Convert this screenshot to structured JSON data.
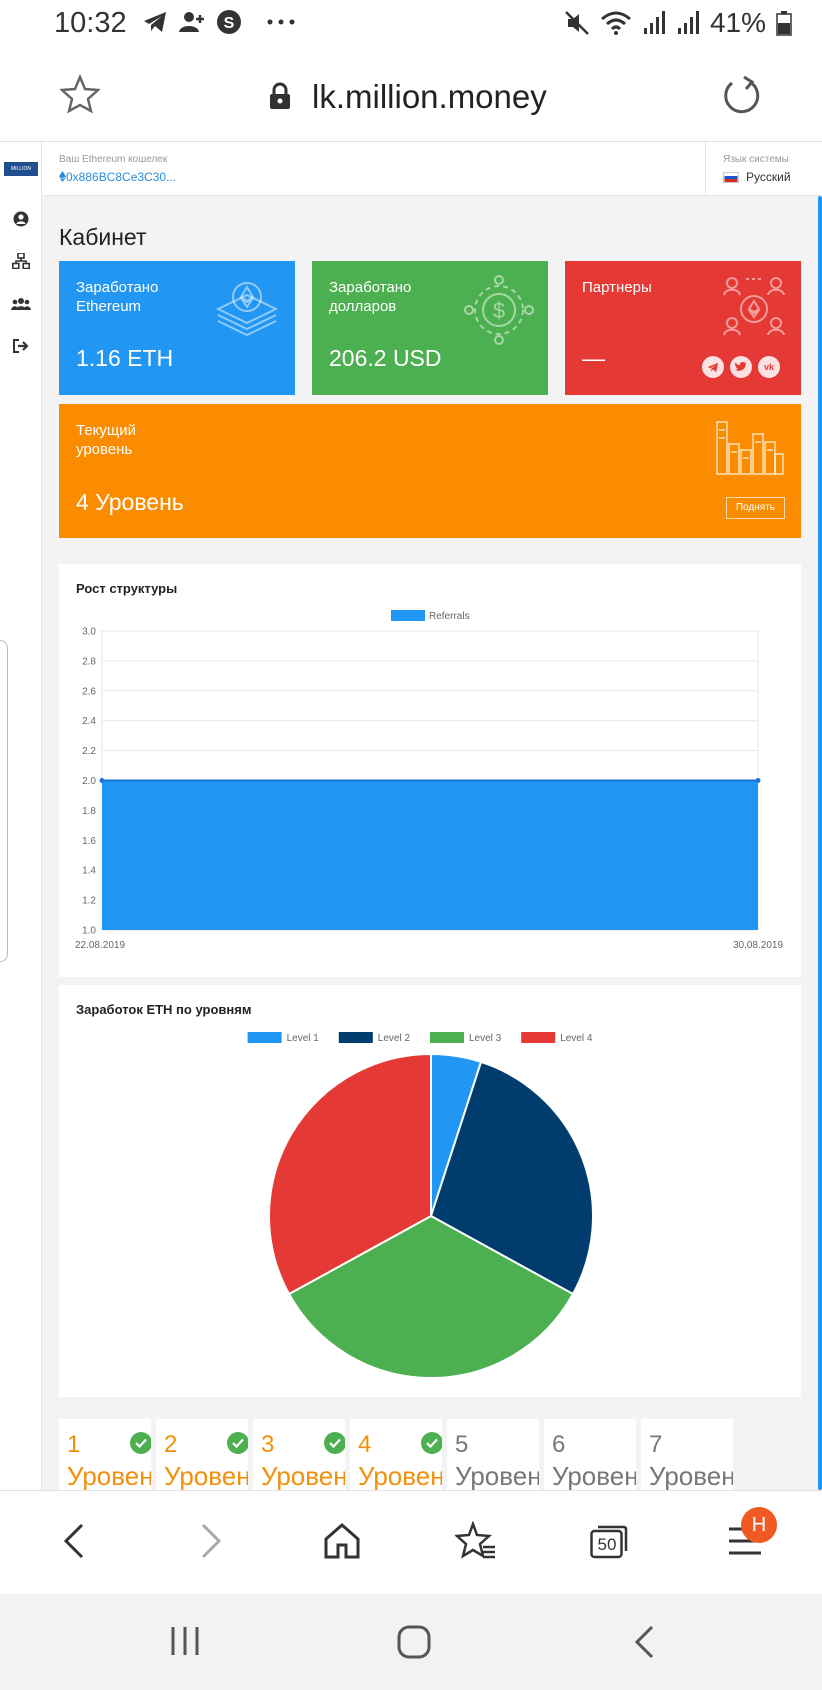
{
  "status_bar": {
    "time": "10:32",
    "battery": "41%",
    "icons": [
      "telegram-icon",
      "add-contact-icon",
      "skype-icon",
      "more-icon",
      "mute-icon",
      "wifi-icon",
      "signal-icon",
      "battery-icon"
    ]
  },
  "browser": {
    "url": "lk.million.money"
  },
  "header": {
    "wallet_label": "Ваш Ethereum кошелек",
    "wallet_address": "0x886BC8Ce3C30...",
    "language_label": "Язык системы",
    "language_value": "Русский"
  },
  "page": {
    "title": "Кабинет"
  },
  "cards": {
    "eth": {
      "label": "Заработано\nEthereum",
      "value": "1.16 ETH",
      "color": "#2196f3"
    },
    "usd": {
      "label": "Заработано\nдолларов",
      "value": "206.2 USD",
      "color": "#4caf50"
    },
    "partners": {
      "label": "Партнеры",
      "value": "—",
      "color": "#e53935"
    },
    "level": {
      "label": "Текущий\nуровень",
      "value": "4 Уровень",
      "button": "Поднять",
      "color": "#fb8c00"
    }
  },
  "chart_data": [
    {
      "type": "area",
      "title": "Рост структуры",
      "series": [
        {
          "name": "Referrals",
          "values": [
            2,
            2
          ],
          "color": "#2196f3"
        }
      ],
      "x": [
        "22.08.2019",
        "30.08.2019"
      ],
      "ylim": [
        1.0,
        3.0
      ],
      "yticks": [
        "1.0",
        "1.2",
        "1.4",
        "1.6",
        "1.8",
        "2.0",
        "2.2",
        "2.4",
        "2.6",
        "2.8",
        "3.0"
      ],
      "legend": "top-center",
      "grid": true
    },
    {
      "type": "pie",
      "title": "Заработок ETH по уровням",
      "categories": [
        "Level 1",
        "Level 2",
        "Level 3",
        "Level 4"
      ],
      "values": [
        5,
        28,
        34,
        33
      ],
      "colors": [
        "#2196f3",
        "#003d6e",
        "#4caf50",
        "#e53935"
      ],
      "legend": "top-center"
    }
  ],
  "levels": [
    {
      "num": "1",
      "word": "Уровень",
      "done": true
    },
    {
      "num": "2",
      "word": "Уровень",
      "done": true
    },
    {
      "num": "3",
      "word": "Уровень",
      "done": true
    },
    {
      "num": "4",
      "word": "Уровень",
      "done": true
    },
    {
      "num": "5",
      "word": "Уровень",
      "done": false
    },
    {
      "num": "6",
      "word": "Уровень",
      "done": false
    },
    {
      "num": "7",
      "word": "Уровень",
      "done": false
    }
  ],
  "toolbar": {
    "tabs_count": "50",
    "profile_badge": "H"
  }
}
